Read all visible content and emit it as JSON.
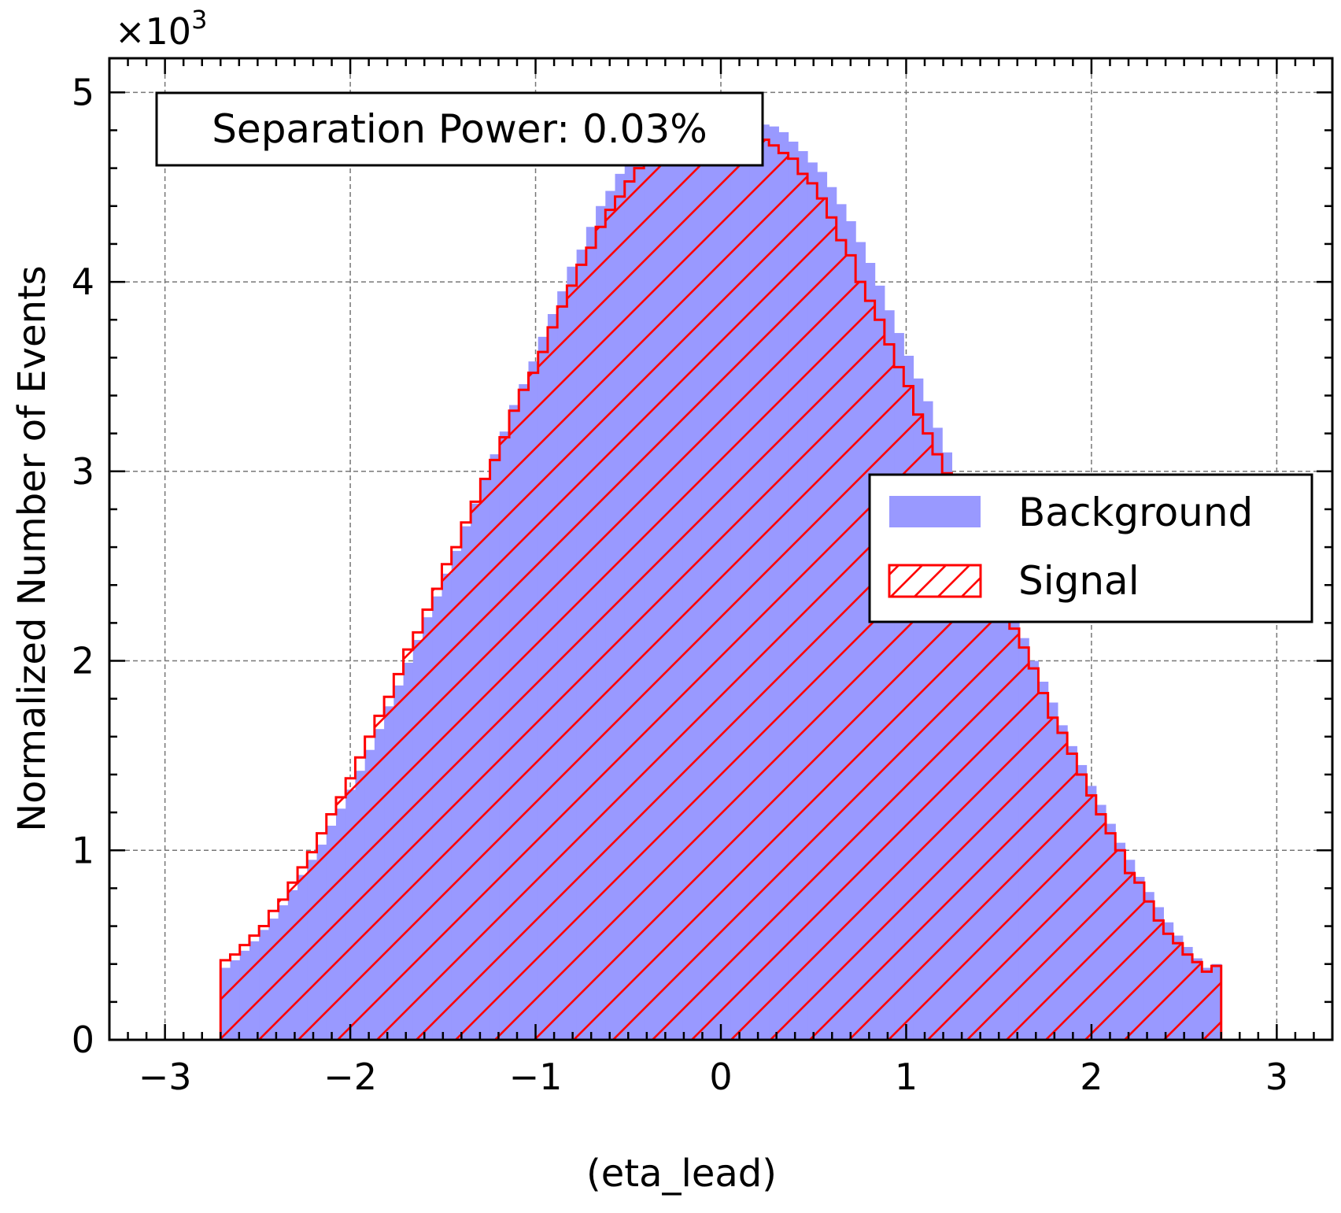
{
  "chart_data": {
    "type": "histogram",
    "xlabel": "(eta_lead)",
    "ylabel": "Normalized Number of Events",
    "y_multiplier": "×10",
    "y_multiplier_exp": "3",
    "xlim": [
      -3.3,
      3.3
    ],
    "ylim": [
      0,
      5.18
    ],
    "x_ticks": [
      -3,
      -2,
      -1,
      0,
      1,
      2,
      3
    ],
    "x_tick_labels": [
      "−3",
      "−2",
      "−1",
      "0",
      "1",
      "2",
      "3"
    ],
    "y_ticks": [
      0,
      1,
      2,
      3,
      4,
      5
    ],
    "y_tick_labels": [
      "0",
      "1",
      "2",
      "3",
      "4",
      "5"
    ],
    "grid": true,
    "annotation": "Separation Power: 0.03%",
    "bin_range": [
      -2.7,
      2.7
    ],
    "legend_position": "center-right",
    "series": [
      {
        "name": "Background",
        "style": "filled",
        "color": "#9999ff",
        "values": [
          0.38,
          0.42,
          0.47,
          0.52,
          0.58,
          0.64,
          0.71,
          0.79,
          0.87,
          0.95,
          1.03,
          1.13,
          1.22,
          1.32,
          1.42,
          1.53,
          1.64,
          1.76,
          1.87,
          1.99,
          2.11,
          2.23,
          2.34,
          2.46,
          2.58,
          2.71,
          2.83,
          2.96,
          3.09,
          3.21,
          3.35,
          3.46,
          3.58,
          3.71,
          3.83,
          3.95,
          4.08,
          4.17,
          4.29,
          4.4,
          4.48,
          4.57,
          4.63,
          4.69,
          4.74,
          4.79,
          4.82,
          4.84,
          4.83,
          4.85,
          4.85,
          4.86,
          4.86,
          4.86,
          4.84,
          4.85,
          4.83,
          4.82,
          4.79,
          4.74,
          4.69,
          4.63,
          4.58,
          4.5,
          4.41,
          4.32,
          4.21,
          4.1,
          3.98,
          3.85,
          3.73,
          3.61,
          3.49,
          3.37,
          3.23,
          3.1,
          2.98,
          2.85,
          2.73,
          2.61,
          2.49,
          2.36,
          2.24,
          2.12,
          2.0,
          1.89,
          1.78,
          1.66,
          1.55,
          1.45,
          1.34,
          1.24,
          1.14,
          1.04,
          0.95,
          0.86,
          0.78,
          0.7,
          0.62,
          0.55,
          0.49,
          0.43,
          0.38,
          0.4
        ]
      },
      {
        "name": "Signal",
        "style": "hatched",
        "color": "#ff0000",
        "values": [
          0.42,
          0.45,
          0.5,
          0.55,
          0.6,
          0.68,
          0.74,
          0.83,
          0.91,
          0.99,
          1.09,
          1.19,
          1.28,
          1.38,
          1.49,
          1.6,
          1.71,
          1.81,
          1.93,
          2.06,
          2.15,
          2.27,
          2.38,
          2.51,
          2.6,
          2.73,
          2.84,
          2.96,
          3.06,
          3.18,
          3.32,
          3.43,
          3.52,
          3.63,
          3.76,
          3.87,
          3.98,
          4.09,
          4.18,
          4.29,
          4.38,
          4.45,
          4.53,
          4.6,
          4.65,
          4.7,
          4.74,
          4.79,
          4.81,
          4.81,
          4.81,
          4.82,
          4.81,
          4.81,
          4.8,
          4.78,
          4.75,
          4.72,
          4.68,
          4.65,
          4.57,
          4.52,
          4.44,
          4.34,
          4.22,
          4.14,
          4.0,
          3.9,
          3.8,
          3.67,
          3.55,
          3.45,
          3.3,
          3.2,
          3.09,
          2.99,
          2.87,
          2.75,
          2.63,
          2.5,
          2.38,
          2.25,
          2.17,
          2.07,
          1.96,
          1.83,
          1.7,
          1.62,
          1.51,
          1.4,
          1.29,
          1.19,
          1.09,
          1.0,
          0.88,
          0.83,
          0.73,
          0.63,
          0.56,
          0.51,
          0.45,
          0.41,
          0.36,
          0.39
        ]
      }
    ]
  }
}
